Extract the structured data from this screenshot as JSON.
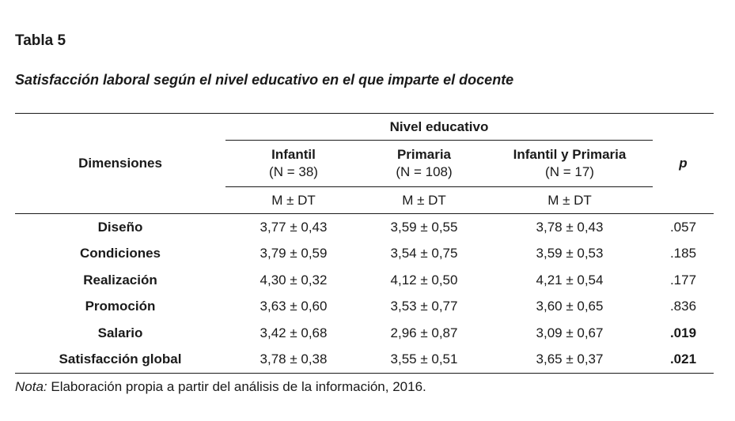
{
  "table_label": "Tabla 5",
  "table_title": "Satisfacción laboral según el nivel educativo en el que imparte el docente",
  "header": {
    "group_label": "Nivel educativo",
    "dimension_header": "Dimensiones",
    "p_header": "p",
    "columns": [
      {
        "name": "Infantil",
        "n": "(N = 38)",
        "stat": "M ± DT"
      },
      {
        "name": "Primaria",
        "n": "(N = 108)",
        "stat": "M ± DT"
      },
      {
        "name": "Infantil y Primaria",
        "n": "(N = 17)",
        "stat": "M ± DT"
      }
    ]
  },
  "rows": [
    {
      "dimension": "Diseño",
      "infantil": "3,77 ± 0,43",
      "primaria": "3,59 ± 0,55",
      "ambos": "3,78 ± 0,43",
      "p": ".057",
      "significant": false
    },
    {
      "dimension": "Condiciones",
      "infantil": "3,79 ± 0,59",
      "primaria": "3,54 ± 0,75",
      "ambos": "3,59 ± 0,53",
      "p": ".185",
      "significant": false
    },
    {
      "dimension": "Realización",
      "infantil": "4,30 ± 0,32",
      "primaria": "4,12 ± 0,50",
      "ambos": "4,21 ± 0,54",
      "p": ".177",
      "significant": false
    },
    {
      "dimension": "Promoción",
      "infantil": "3,63 ± 0,60",
      "primaria": "3,53 ± 0,77",
      "ambos": "3,60 ± 0,65",
      "p": ".836",
      "significant": false
    },
    {
      "dimension": "Salario",
      "infantil": "3,42 ± 0,68",
      "primaria": "2,96 ± 0,87",
      "ambos": "3,09 ± 0,67",
      "p": ".019",
      "significant": true
    },
    {
      "dimension": "Satisfacción global",
      "infantil": "3,78 ± 0,38",
      "primaria": "3,55 ± 0,51",
      "ambos": "3,65 ± 0,37",
      "p": ".021",
      "significant": true
    }
  ],
  "note": {
    "label": "Nota:",
    "text": " Elaboración propia  a partir del análisis de la información, 2016."
  }
}
